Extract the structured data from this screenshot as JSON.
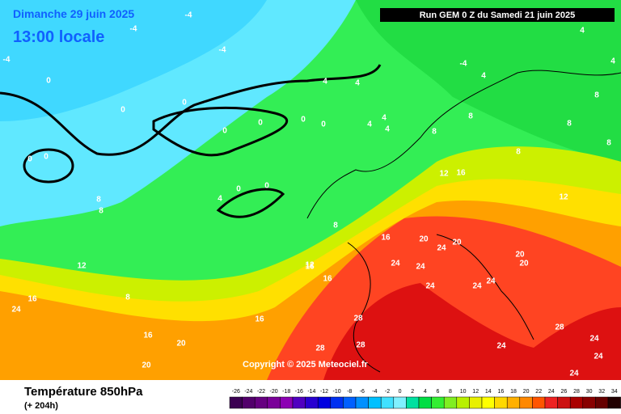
{
  "header": {
    "date": "Dimanche 29 juin 2025",
    "time": "13:00 locale",
    "run": "Run GEM 0 Z du Samedi 21 juin 2025"
  },
  "copyright": "Copyright © 2025 Meteociel.fr",
  "footer": {
    "title": "Température 850hPa",
    "lead": "(+ 204h)"
  },
  "scale": {
    "values": [
      -26,
      -24,
      -22,
      -20,
      -18,
      -16,
      -14,
      -12,
      -10,
      -8,
      -6,
      -4,
      -2,
      0,
      2,
      4,
      6,
      8,
      10,
      12,
      14,
      16,
      18,
      20,
      22,
      24,
      26,
      28,
      30,
      32,
      34
    ],
    "colors": [
      "#3b0052",
      "#52006b",
      "#660080",
      "#7a0099",
      "#8c00b3",
      "#5000c0",
      "#2800d0",
      "#0000e0",
      "#0030f0",
      "#0060ff",
      "#0090ff",
      "#00c0ff",
      "#40e0ff",
      "#80f0ff",
      "#00e0a0",
      "#00dd44",
      "#33ee33",
      "#80ee22",
      "#b8f000",
      "#e8f000",
      "#ffff00",
      "#ffd800",
      "#ffb000",
      "#ff8800",
      "#ff5500",
      "#ee2222",
      "#cc1111",
      "#aa0000",
      "#880000",
      "#660000",
      "#220000"
    ]
  },
  "contour_labels": [
    -4,
    -4,
    -4,
    -4,
    -4,
    0,
    0,
    0,
    0,
    0,
    0,
    0,
    0,
    0,
    0,
    0,
    4,
    4,
    4,
    4,
    4,
    4,
    4,
    4,
    4,
    8,
    8,
    8,
    8,
    8,
    8,
    8,
    8,
    8,
    12,
    12,
    12,
    16,
    16,
    16,
    16,
    16,
    16,
    20,
    20,
    20,
    20,
    20,
    20,
    24,
    24,
    24,
    24,
    24,
    24,
    24,
    24,
    28,
    28,
    28,
    28,
    24,
    24,
    24,
    12,
    16,
    8
  ]
}
